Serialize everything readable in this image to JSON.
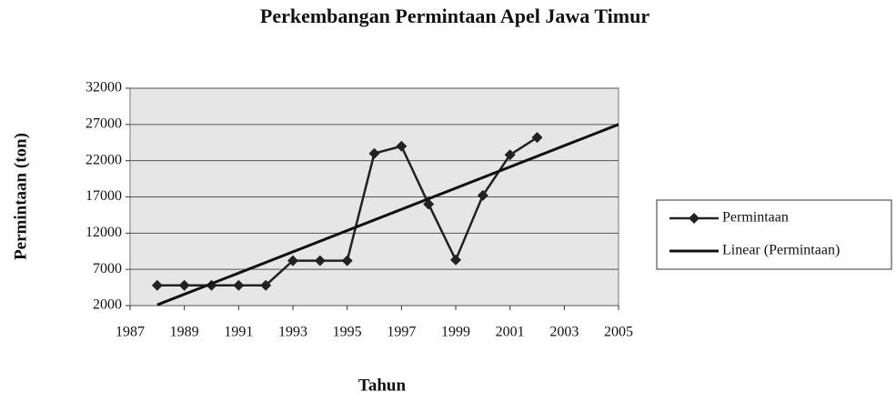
{
  "chart_data": {
    "type": "line",
    "title": "Perkembangan Permintaan Apel Jawa Timur",
    "x_label": "Tahun",
    "y_label": "Permintaan (ton)",
    "series": [
      {
        "name": "Permintaan",
        "color": "#222222",
        "marker": "diamond",
        "x": [
          1988,
          1989,
          1990,
          1991,
          1992,
          1993,
          1994,
          1995,
          1996,
          1997,
          1998,
          1999,
          2000,
          2001,
          2002
        ],
        "values": [
          4800,
          4800,
          4800,
          4800,
          4800,
          8200,
          8200,
          8200,
          23000,
          24000,
          16000,
          8300,
          17200,
          22800,
          25200
        ]
      },
      {
        "name": "Linear (Permintaan)",
        "color": "#111111",
        "marker": "none",
        "x": [
          1988,
          2005
        ],
        "values": [
          2100,
          27000
        ]
      }
    ],
    "xlim": [
      1987,
      2005
    ],
    "xticks": [
      1987,
      1989,
      1991,
      1993,
      1995,
      1997,
      1999,
      2001,
      2003,
      2005
    ],
    "ylim": [
      2000,
      32000
    ],
    "yticks": [
      2000,
      7000,
      12000,
      17000,
      22000,
      27000,
      32000
    ],
    "grid": true,
    "legend": "right"
  }
}
